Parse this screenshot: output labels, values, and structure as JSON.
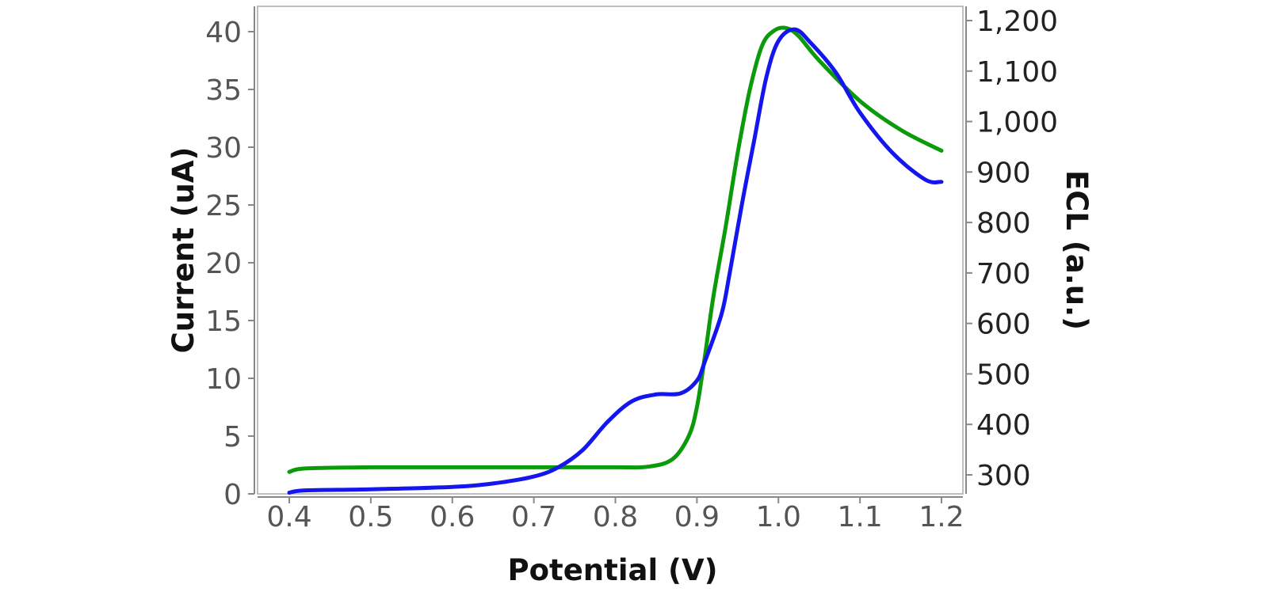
{
  "chart_data": {
    "type": "line",
    "title": "",
    "xlabel": "Potential (V)",
    "ylabel_left": "Current (uA)",
    "ylabel_right": "ECL (a.u.)",
    "xlim": [
      0.4,
      1.2
    ],
    "ylim_left": [
      0,
      40
    ],
    "ylim_right": [
      300,
      1200
    ],
    "x_ticks": [
      "0.4",
      "0.5",
      "0.6",
      "0.7",
      "0.8",
      "0.9",
      "1.0",
      "1.1",
      "1.2"
    ],
    "y_left_ticks": [
      "0",
      "5",
      "10",
      "15",
      "20",
      "25",
      "30",
      "35",
      "40"
    ],
    "y_right_ticks": [
      "300",
      "400",
      "500",
      "600",
      "700",
      "800",
      "900",
      "1,000",
      "1,100",
      "1,200"
    ],
    "grid": false,
    "legend": "none",
    "series": [
      {
        "color": "#0a9a0a",
        "axis": "left",
        "points": [
          [
            0.4,
            1.9
          ],
          [
            0.42,
            2.2
          ],
          [
            0.5,
            2.3
          ],
          [
            0.6,
            2.3
          ],
          [
            0.7,
            2.3
          ],
          [
            0.8,
            2.3
          ],
          [
            0.84,
            2.35
          ],
          [
            0.87,
            3.0
          ],
          [
            0.89,
            5.0
          ],
          [
            0.9,
            7.5
          ],
          [
            0.91,
            12.0
          ],
          [
            0.92,
            17.0
          ],
          [
            0.935,
            23.0
          ],
          [
            0.95,
            29.5
          ],
          [
            0.965,
            35.0
          ],
          [
            0.98,
            38.8
          ],
          [
            0.995,
            40.1
          ],
          [
            1.01,
            40.3
          ],
          [
            1.025,
            39.6
          ],
          [
            1.05,
            37.5
          ],
          [
            1.1,
            34.0
          ],
          [
            1.15,
            31.5
          ],
          [
            1.2,
            29.7
          ]
        ]
      },
      {
        "color": "#1515ee",
        "axis": "left",
        "points": [
          [
            0.4,
            0.1
          ],
          [
            0.42,
            0.3
          ],
          [
            0.5,
            0.4
          ],
          [
            0.6,
            0.6
          ],
          [
            0.65,
            0.9
          ],
          [
            0.7,
            1.5
          ],
          [
            0.73,
            2.3
          ],
          [
            0.76,
            3.8
          ],
          [
            0.79,
            6.2
          ],
          [
            0.82,
            8.0
          ],
          [
            0.85,
            8.6
          ],
          [
            0.88,
            8.7
          ],
          [
            0.9,
            9.8
          ],
          [
            0.91,
            11.5
          ],
          [
            0.93,
            15.5
          ],
          [
            0.94,
            19.0
          ],
          [
            0.955,
            25.0
          ],
          [
            0.97,
            30.5
          ],
          [
            0.985,
            36.0
          ],
          [
            1.0,
            39.2
          ],
          [
            1.02,
            40.2
          ],
          [
            1.04,
            39.0
          ],
          [
            1.07,
            36.5
          ],
          [
            1.1,
            33.0
          ],
          [
            1.14,
            29.5
          ],
          [
            1.18,
            27.2
          ],
          [
            1.2,
            27.0
          ]
        ]
      }
    ]
  }
}
